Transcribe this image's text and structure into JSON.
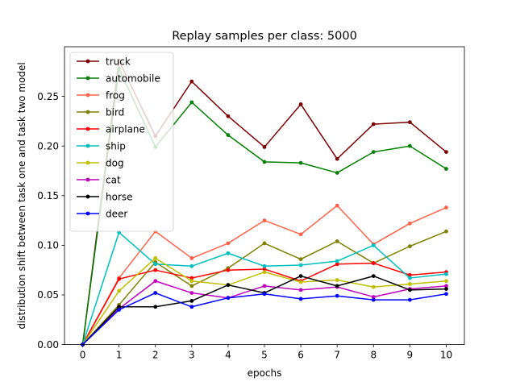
{
  "chart_data": {
    "type": "line",
    "title": "Replay samples per class: 5000",
    "xlabel": "epochs",
    "ylabel": "distribution shift between task one and task two model",
    "x": [
      0,
      1,
      2,
      3,
      4,
      5,
      6,
      7,
      8,
      9,
      10
    ],
    "xlim": [
      -0.5,
      10.5
    ],
    "ylim": [
      0,
      0.3
    ],
    "xticks": [
      "0",
      "1",
      "2",
      "3",
      "4",
      "5",
      "6",
      "7",
      "8",
      "9",
      "10"
    ],
    "yticks": [
      {
        "value": 0.0,
        "label": "0.00"
      },
      {
        "value": 0.05,
        "label": "0.05"
      },
      {
        "value": 0.1,
        "label": "0.10"
      },
      {
        "value": 0.15,
        "label": "0.15"
      },
      {
        "value": 0.2,
        "label": "0.20"
      },
      {
        "value": 0.25,
        "label": "0.25"
      }
    ],
    "grid": false,
    "legend_position": "top-left",
    "series": [
      {
        "name": "truck",
        "color": "#800000",
        "values": [
          0.0,
          0.286,
          0.21,
          0.265,
          0.23,
          0.199,
          0.242,
          0.187,
          0.222,
          0.224,
          0.194
        ]
      },
      {
        "name": "automobile",
        "color": "#008000",
        "values": [
          0.0,
          0.278,
          0.199,
          0.244,
          0.211,
          0.184,
          0.183,
          0.173,
          0.194,
          0.2,
          0.177
        ]
      },
      {
        "name": "frog",
        "color": "#ff6347",
        "values": [
          0.0,
          0.067,
          0.114,
          0.087,
          0.102,
          0.125,
          0.111,
          0.14,
          0.101,
          0.122,
          0.138
        ]
      },
      {
        "name": "bird",
        "color": "#808000",
        "values": [
          0.0,
          0.04,
          0.083,
          0.059,
          0.077,
          0.102,
          0.086,
          0.104,
          0.082,
          0.099,
          0.114
        ]
      },
      {
        "name": "airplane",
        "color": "#ff0000",
        "values": [
          0.0,
          0.066,
          0.075,
          0.067,
          0.075,
          0.076,
          0.064,
          0.081,
          0.082,
          0.07,
          0.073
        ]
      },
      {
        "name": "ship",
        "color": "#00bfbf",
        "values": [
          0.0,
          0.113,
          0.081,
          0.079,
          0.092,
          0.079,
          0.08,
          0.084,
          0.1,
          0.067,
          0.071
        ]
      },
      {
        "name": "dog",
        "color": "#bfbf00",
        "values": [
          0.0,
          0.054,
          0.087,
          0.064,
          0.06,
          0.073,
          0.063,
          0.065,
          0.058,
          0.061,
          0.064
        ]
      },
      {
        "name": "cat",
        "color": "#bf00bf",
        "values": [
          0.0,
          0.036,
          0.064,
          0.052,
          0.047,
          0.059,
          0.055,
          0.058,
          0.048,
          0.056,
          0.059
        ]
      },
      {
        "name": "horse",
        "color": "#000000",
        "values": [
          0.0,
          0.038,
          0.038,
          0.044,
          0.06,
          0.052,
          0.069,
          0.059,
          0.069,
          0.055,
          0.056
        ]
      },
      {
        "name": "deer",
        "color": "#0000ff",
        "values": [
          0.0,
          0.035,
          0.052,
          0.038,
          0.047,
          0.051,
          0.046,
          0.049,
          0.045,
          0.045,
          0.051
        ]
      }
    ]
  }
}
